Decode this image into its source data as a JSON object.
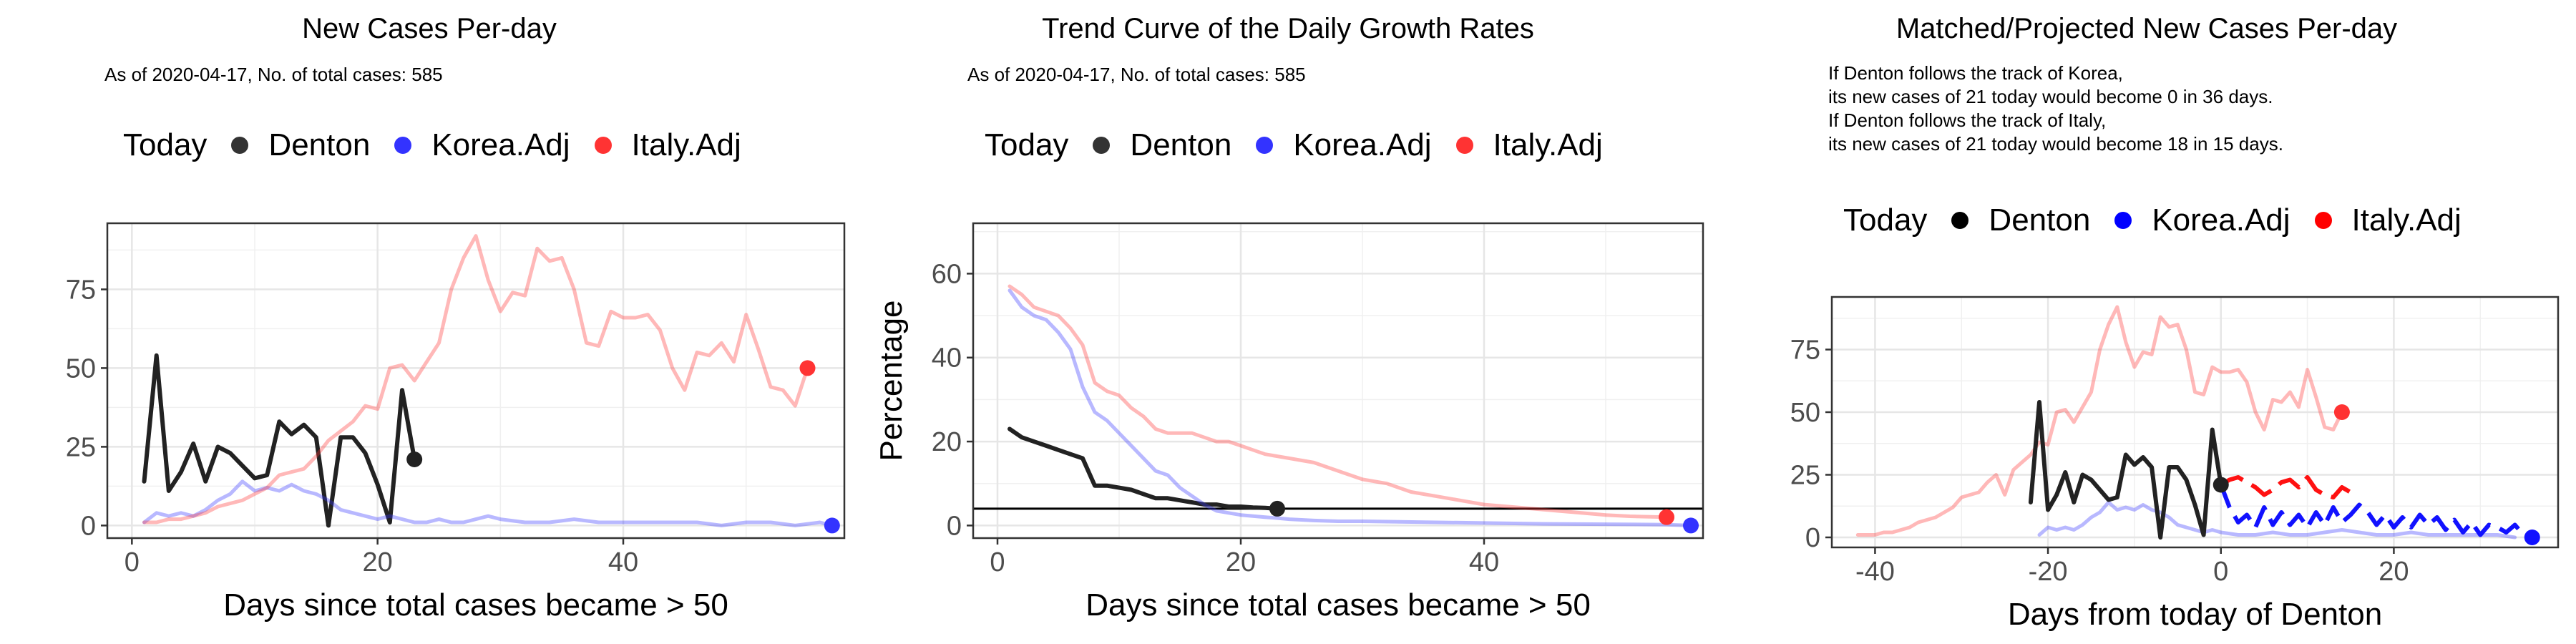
{
  "chart_data": [
    {
      "type": "line",
      "title": "New Cases Per-day",
      "subtitle_lines": [
        "As of 2020-04-17, No. of total cases: 585"
      ],
      "xlabel": "Days since total cases became > 50",
      "ylabel": "",
      "xlim": [
        -2,
        58
      ],
      "ylim": [
        -4,
        96
      ],
      "xticks": [
        0,
        20,
        40
      ],
      "yticks": [
        0,
        25,
        50,
        75
      ],
      "grid": true,
      "legend": {
        "title": "Today",
        "position": "top",
        "entries": [
          {
            "name": "Denton",
            "color": "#333333"
          },
          {
            "name": "Korea.Adj",
            "color": "#3333ff"
          },
          {
            "name": "Italy.Adj",
            "color": "#ff3333"
          }
        ]
      },
      "series": [
        {
          "name": "Denton",
          "color": "#222222",
          "width": 6,
          "opacity": 1,
          "x": [
            1,
            2,
            3,
            4,
            5,
            6,
            7,
            8,
            9,
            10,
            11,
            12,
            13,
            14,
            15,
            16,
            17,
            18,
            19,
            20,
            21,
            22,
            23
          ],
          "y": [
            14,
            54,
            11,
            17,
            26,
            14,
            25,
            23,
            19,
            15,
            16,
            33,
            29,
            32,
            28,
            0,
            28,
            28,
            23,
            13,
            1,
            43,
            21
          ],
          "end_point": true
        },
        {
          "name": "Korea.Adj",
          "color": "#3333ff",
          "width": 5,
          "opacity": 0.35,
          "x": [
            1,
            2,
            3,
            4,
            5,
            6,
            7,
            8,
            9,
            10,
            11,
            12,
            13,
            14,
            15,
            16,
            17,
            18,
            19,
            20,
            21,
            22,
            23,
            24,
            25,
            26,
            27,
            28,
            29,
            30,
            32,
            34,
            36,
            38,
            40,
            42,
            44,
            46,
            48,
            50,
            52,
            54,
            56,
            57
          ],
          "y": [
            1,
            4,
            3,
            4,
            3,
            5,
            8,
            10,
            14,
            11,
            12,
            11,
            13,
            11,
            10,
            8,
            5,
            4,
            3,
            2,
            3,
            2,
            1,
            1,
            2,
            1,
            1,
            2,
            3,
            2,
            1,
            1,
            2,
            1,
            1,
            1,
            1,
            1,
            0,
            1,
            1,
            0,
            1,
            0
          ],
          "end_point": true
        },
        {
          "name": "Italy.Adj",
          "color": "#ff3333",
          "width": 5,
          "opacity": 0.35,
          "x": [
            1,
            2,
            3,
            4,
            5,
            6,
            7,
            8,
            9,
            10,
            11,
            12,
            13,
            14,
            15,
            16,
            17,
            18,
            19,
            20,
            21,
            22,
            23,
            24,
            25,
            26,
            27,
            28,
            29,
            30,
            31,
            32,
            33,
            34,
            35,
            36,
            37,
            38,
            39,
            40,
            41,
            42,
            43,
            44,
            45,
            46,
            47,
            48,
            49,
            50,
            51,
            52,
            53,
            54,
            55
          ],
          "y": [
            1,
            1,
            2,
            2,
            3,
            4,
            6,
            7,
            8,
            10,
            12,
            16,
            17,
            18,
            22,
            27,
            30,
            33,
            38,
            37,
            50,
            51,
            46,
            52,
            58,
            75,
            85,
            92,
            78,
            68,
            74,
            73,
            88,
            84,
            85,
            75,
            58,
            57,
            68,
            66,
            66,
            67,
            62,
            50,
            43,
            55,
            54,
            58,
            52,
            67,
            56,
            44,
            43,
            38,
            50
          ],
          "end_point": true
        }
      ]
    },
    {
      "type": "line",
      "title": "Trend Curve of the Daily Growth Rates",
      "subtitle_lines": [
        "As of 2020-04-17, No. of total cases: 585"
      ],
      "xlabel": "Days since total cases became > 50",
      "ylabel": "Percentage",
      "xlim": [
        -2,
        58
      ],
      "ylim": [
        -3,
        72
      ],
      "xticks": [
        0,
        20,
        40
      ],
      "yticks": [
        0,
        20,
        40,
        60
      ],
      "grid": true,
      "hline": 4,
      "legend": {
        "title": "Today",
        "position": "top",
        "entries": [
          {
            "name": "Denton",
            "color": "#333333"
          },
          {
            "name": "Korea.Adj",
            "color": "#3333ff"
          },
          {
            "name": "Italy.Adj",
            "color": "#ff3333"
          }
        ]
      },
      "series": [
        {
          "name": "Denton",
          "color": "#222222",
          "width": 6,
          "opacity": 1,
          "x": [
            1,
            2,
            3,
            4,
            5,
            6,
            7,
            8,
            9,
            10,
            11,
            12,
            13,
            14,
            15,
            16,
            17,
            18,
            19,
            20,
            21,
            22,
            23
          ],
          "y": [
            23,
            21,
            20,
            19,
            18,
            17,
            16,
            9.5,
            9.5,
            9,
            8.5,
            7.5,
            6.5,
            6.5,
            6,
            5.5,
            5,
            5,
            4.5,
            4.5,
            4.3,
            4.2,
            4
          ],
          "end_point": true
        },
        {
          "name": "Korea.Adj",
          "color": "#3333ff",
          "width": 5,
          "opacity": 0.35,
          "x": [
            1,
            2,
            3,
            4,
            5,
            6,
            7,
            8,
            9,
            10,
            11,
            12,
            13,
            14,
            15,
            16,
            17,
            18,
            19,
            20,
            22,
            24,
            26,
            28,
            30,
            35,
            40,
            45,
            50,
            55,
            57
          ],
          "y": [
            56,
            52,
            50,
            49,
            46,
            42,
            33,
            27,
            25,
            22,
            19,
            16,
            13,
            12,
            9,
            7,
            5,
            3.5,
            3,
            2.5,
            2,
            1.5,
            1.2,
            1,
            1,
            0.8,
            0.6,
            0.4,
            0.3,
            0.2,
            0
          ],
          "end_point": true
        },
        {
          "name": "Italy.Adj",
          "color": "#ff3333",
          "width": 5,
          "opacity": 0.35,
          "x": [
            1,
            2,
            3,
            4,
            5,
            6,
            7,
            8,
            9,
            10,
            11,
            12,
            13,
            14,
            15,
            16,
            17,
            18,
            19,
            20,
            21,
            22,
            24,
            26,
            28,
            30,
            32,
            34,
            36,
            38,
            40,
            42,
            44,
            46,
            48,
            50,
            52,
            55
          ],
          "y": [
            57,
            55,
            52,
            51,
            50,
            47,
            43,
            34,
            32,
            31,
            28,
            26,
            23,
            22,
            22,
            22,
            21,
            20,
            20,
            19,
            18,
            17,
            16,
            15,
            13,
            11,
            10,
            8,
            7,
            6,
            5,
            4.5,
            4,
            3.5,
            3,
            2.5,
            2.2,
            2
          ],
          "end_point": true
        }
      ]
    },
    {
      "type": "line",
      "title": "Matched/Projected New Cases Per-day",
      "subtitle_lines": [
        "If Denton follows the track of Korea,",
        "its new cases of 21 today would become 0 in 36 days.",
        "If Denton follows the track of Italy,",
        "its new cases of 21 today would become 18 in 15 days."
      ],
      "xlabel": "Days from today of Denton",
      "ylabel": "",
      "xlim": [
        -45,
        39
      ],
      "ylim": [
        -4,
        96
      ],
      "xticks": [
        -40,
        -20,
        0,
        20
      ],
      "yticks": [
        0,
        25,
        50,
        75
      ],
      "grid": true,
      "legend": {
        "title": "Today",
        "position": "top",
        "entries": [
          {
            "name": "Denton",
            "color": "#000000"
          },
          {
            "name": "Korea.Adj",
            "color": "#0000ff"
          },
          {
            "name": "Italy.Adj",
            "color": "#ff0000"
          }
        ]
      },
      "series": [
        {
          "name": "Italy.Adj",
          "color": "#ff3333",
          "width": 5,
          "opacity": 0.35,
          "x": [
            -42,
            -40,
            -39,
            -38,
            -37,
            -36,
            -35,
            -34,
            -33,
            -32,
            -31,
            -30,
            -29,
            -28,
            -27,
            -26,
            -25,
            -24,
            -23,
            -22,
            -21,
            -20,
            -19,
            -18,
            -17,
            -16,
            -15,
            -14,
            -13,
            -12,
            -11,
            -10,
            -9,
            -8,
            -7,
            -6,
            -5,
            -4,
            -3,
            -2,
            -1,
            0,
            1,
            2,
            3,
            4,
            5,
            6,
            7,
            8,
            9,
            10,
            11,
            12,
            13,
            14
          ],
          "y": [
            1,
            1,
            2,
            2,
            3,
            4,
            6,
            7,
            8,
            10,
            12,
            16,
            17,
            18,
            22,
            25,
            17,
            27,
            30,
            33,
            38,
            37,
            50,
            51,
            46,
            52,
            58,
            75,
            85,
            92,
            78,
            68,
            74,
            73,
            88,
            84,
            85,
            75,
            58,
            57,
            68,
            66,
            66,
            67,
            62,
            50,
            43,
            55,
            54,
            58,
            52,
            67,
            56,
            44,
            43,
            50
          ],
          "end_point": true
        },
        {
          "name": "Korea.Adj",
          "color": "#3333ff",
          "width": 5,
          "opacity": 0.35,
          "x": [
            -21,
            -20,
            -19,
            -18,
            -17,
            -16,
            -15,
            -14,
            -13,
            -12,
            -11,
            -10,
            -9,
            -8,
            -7,
            -6,
            -5,
            -4,
            -3,
            -2,
            -1,
            0,
            2,
            4,
            6,
            8,
            10,
            12,
            14,
            16,
            18,
            20,
            22,
            24,
            26,
            28,
            30,
            32,
            34
          ],
          "y": [
            1,
            4,
            3,
            4,
            3,
            5,
            8,
            10,
            14,
            11,
            12,
            11,
            13,
            11,
            10,
            8,
            5,
            4,
            3,
            2,
            3,
            2,
            1,
            1,
            2,
            1,
            1,
            2,
            3,
            2,
            1,
            1,
            2,
            1,
            1,
            1,
            1,
            1,
            0
          ],
          "end_point": false
        },
        {
          "name": "Denton",
          "color": "#222222",
          "width": 6,
          "opacity": 1,
          "x": [
            -22,
            -21,
            -20,
            -19,
            -18,
            -17,
            -16,
            -15,
            -14,
            -13,
            -12,
            -11,
            -10,
            -9,
            -8,
            -7,
            -6,
            -5,
            -4,
            -3,
            -2,
            -1,
            0
          ],
          "y": [
            14,
            54,
            11,
            17,
            26,
            14,
            25,
            23,
            19,
            15,
            16,
            33,
            29,
            32,
            28,
            0,
            28,
            28,
            23,
            13,
            1,
            43,
            21
          ],
          "end_point": true
        },
        {
          "name": "Italy.Adj",
          "color": "#ff1111",
          "width": 6,
          "opacity": 1,
          "dashed": true,
          "x": [
            0,
            1,
            2,
            3,
            4,
            5,
            6,
            7,
            8,
            9,
            10,
            11,
            12,
            13,
            14,
            15
          ],
          "y": [
            21,
            23,
            24,
            22,
            20,
            17,
            19,
            22,
            23,
            20,
            24,
            19,
            17,
            16,
            20,
            18
          ],
          "end_point": false
        },
        {
          "name": "Korea.Adj",
          "color": "#1111ff",
          "width": 6,
          "opacity": 1,
          "dashed": true,
          "x": [
            0,
            1,
            2,
            3,
            4,
            5,
            6,
            7,
            8,
            9,
            10,
            11,
            12,
            13,
            14,
            15,
            16,
            17,
            18,
            19,
            20,
            21,
            22,
            23,
            24,
            25,
            26,
            27,
            28,
            29,
            30,
            31,
            32,
            33,
            34,
            35,
            36
          ],
          "y": [
            21,
            12,
            6,
            9,
            4,
            12,
            5,
            10,
            5,
            9,
            4,
            10,
            5,
            12,
            6,
            9,
            13,
            10,
            5,
            9,
            4,
            8,
            4,
            9,
            5,
            8,
            3,
            7,
            2,
            6,
            1,
            5,
            4,
            2,
            5,
            1,
            0
          ],
          "end_point": true
        }
      ]
    }
  ]
}
